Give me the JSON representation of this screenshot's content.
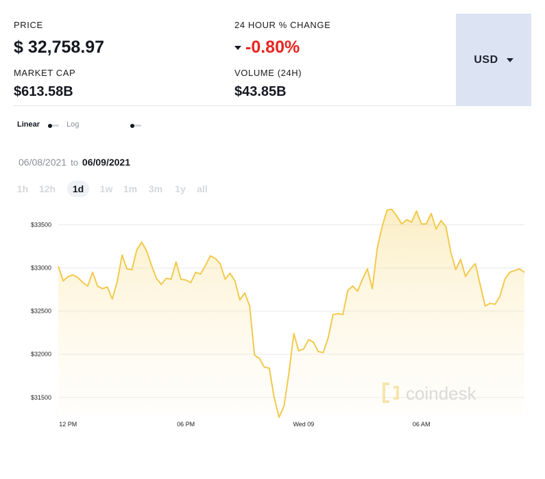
{
  "stats": {
    "price_label": "PRICE",
    "price_value": "$ 32,758.97",
    "change_label": "24 HOUR % CHANGE",
    "change_value": "-0.80%",
    "market_cap_label": "MARKET CAP",
    "market_cap_value": "$613.58B",
    "volume_label": "VOLUME (24H)",
    "volume_value": "$43.85B"
  },
  "currency": {
    "selected": "USD"
  },
  "scale_toggle": {
    "linear": "Linear",
    "log": "Log"
  },
  "date_range": {
    "from": "06/08/2021",
    "separator": "to",
    "to": "06/09/2021"
  },
  "range_tabs": [
    "1h",
    "12h",
    "1d",
    "1w",
    "1m",
    "3m",
    "1y",
    "all"
  ],
  "active_range": "1d",
  "watermark": "coindesk",
  "colors": {
    "line": "#f2c94c",
    "negative": "#e8251f",
    "currency_bg": "#dce3f2"
  },
  "chart_data": {
    "type": "area",
    "ylim": [
      31300,
      33750
    ],
    "y_ticks": [
      31500,
      32000,
      32500,
      33000,
      33500
    ],
    "y_tick_labels": [
      "$31500",
      "$32000",
      "$32500",
      "$33000",
      "$33500"
    ],
    "x_ticks": [
      2,
      26,
      50,
      74
    ],
    "x_tick_labels": [
      "12 PM",
      "06 PM",
      "Wed 09",
      "06 AM"
    ],
    "grid": true,
    "values": [
      33020,
      32850,
      32900,
      32920,
      32890,
      32830,
      32790,
      32950,
      32790,
      32760,
      32780,
      32640,
      32840,
      33150,
      32990,
      32980,
      33210,
      33300,
      33200,
      33030,
      32880,
      32810,
      32880,
      32870,
      33070,
      32870,
      32860,
      32830,
      32950,
      32930,
      33030,
      33140,
      33110,
      33050,
      32870,
      32940,
      32850,
      32630,
      32710,
      32560,
      31990,
      31950,
      31850,
      31840,
      31500,
      31270,
      31400,
      31780,
      32240,
      32040,
      32060,
      32170,
      32140,
      32030,
      32020,
      32190,
      32460,
      32470,
      32460,
      32740,
      32790,
      32730,
      32870,
      32990,
      32760,
      33230,
      33480,
      33670,
      33680,
      33600,
      33510,
      33560,
      33530,
      33660,
      33510,
      33510,
      33630,
      33450,
      33550,
      33480,
      33180,
      32980,
      33100,
      32900,
      32990,
      33050,
      32800,
      32560,
      32590,
      32580,
      32670,
      32870,
      32950,
      32970,
      32990,
      32950
    ]
  }
}
